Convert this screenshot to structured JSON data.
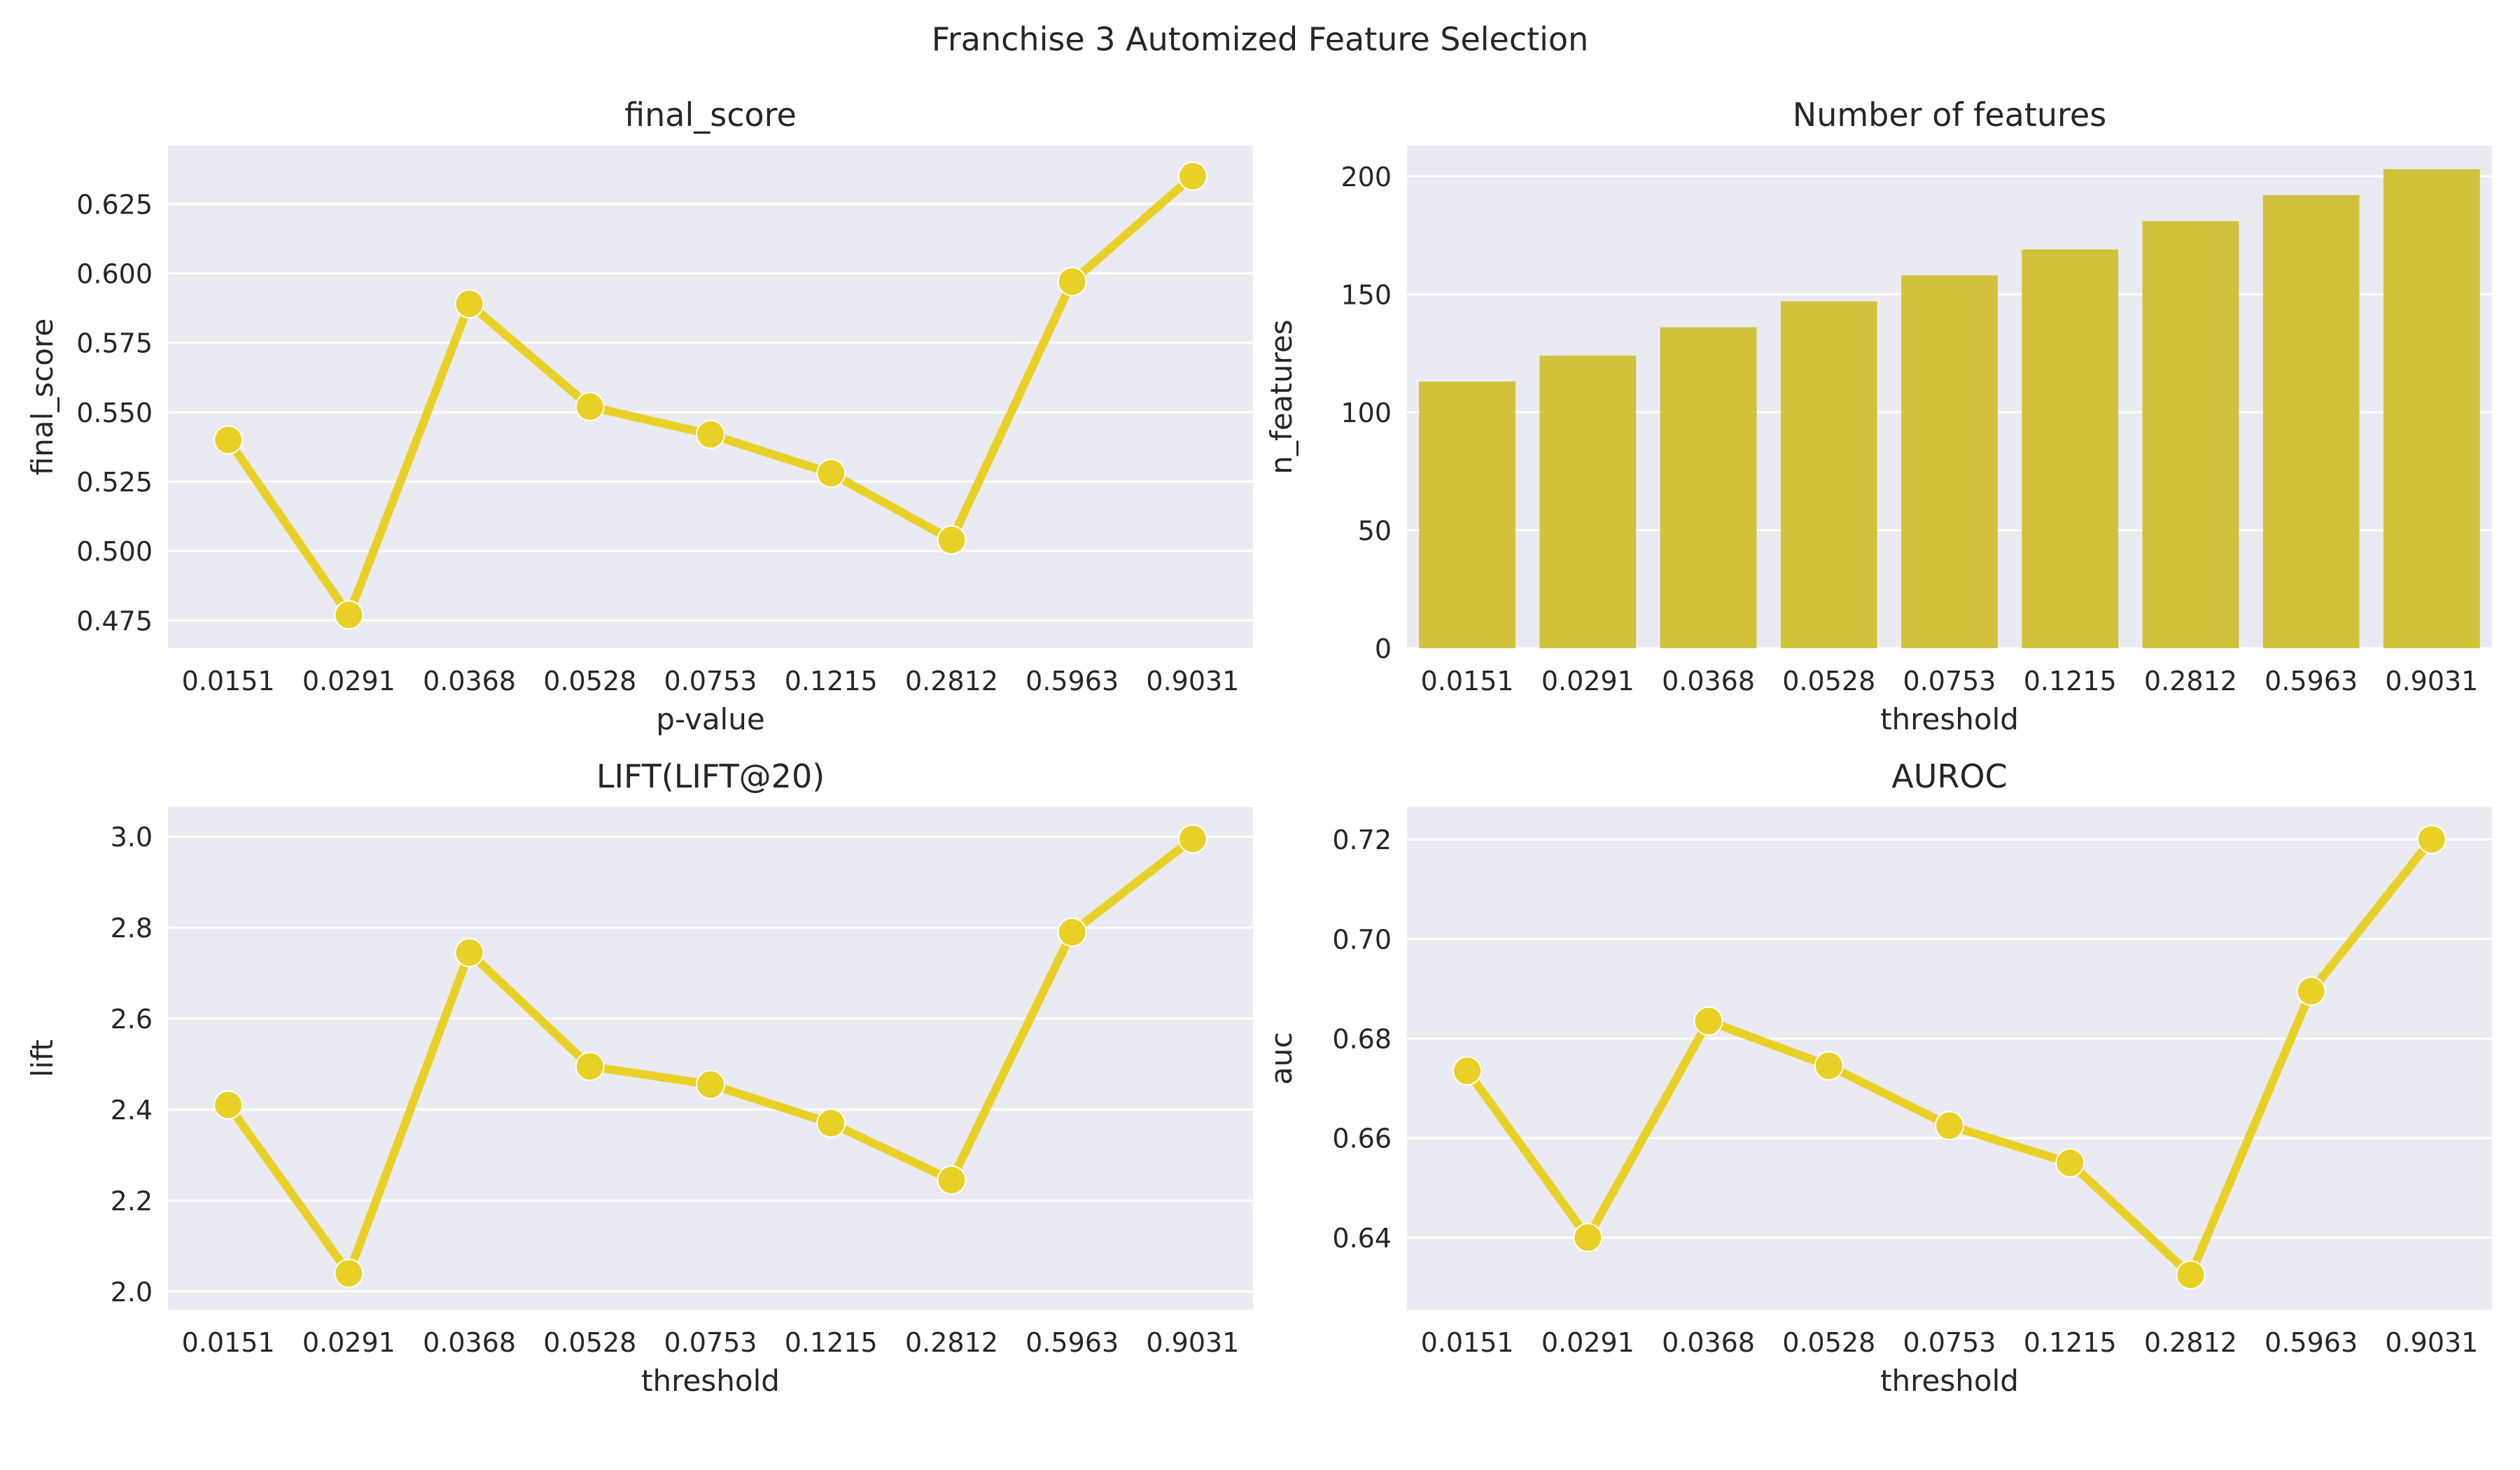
{
  "figure": {
    "title": "Franchise 3 Automized Feature Selection"
  },
  "colors": {
    "line": "#e8d027",
    "bar": "#d2c13a",
    "panel_bg": "#eaeaf2",
    "grid": "#ffffff",
    "text": "#262626"
  },
  "chart_data": [
    {
      "type": "line",
      "title": "final_score",
      "xlabel": "p-value",
      "ylabel": "final_score",
      "categories": [
        "0.0151",
        "0.0291",
        "0.0368",
        "0.0528",
        "0.0753",
        "0.1215",
        "0.2812",
        "0.5963",
        "0.9031"
      ],
      "values": [
        0.54,
        0.477,
        0.589,
        0.552,
        0.542,
        0.528,
        0.504,
        0.597,
        0.635
      ],
      "ylim": [
        0.465,
        0.646
      ],
      "yticks": [
        0.475,
        0.5,
        0.525,
        0.55,
        0.575,
        0.6,
        0.625
      ],
      "ytick_labels": [
        "0.475",
        "0.500",
        "0.525",
        "0.550",
        "0.575",
        "0.600",
        "0.625"
      ],
      "grid": true,
      "markers": true
    },
    {
      "type": "bar",
      "title": "Number of features",
      "xlabel": "threshold",
      "ylabel": "n_features",
      "categories": [
        "0.0151",
        "0.0291",
        "0.0368",
        "0.0528",
        "0.0753",
        "0.1215",
        "0.2812",
        "0.5963",
        "0.9031"
      ],
      "values": [
        113,
        124,
        136,
        147,
        158,
        169,
        181,
        192,
        203
      ],
      "ylim": [
        0,
        213
      ],
      "yticks": [
        0,
        50,
        100,
        150,
        200
      ],
      "ytick_labels": [
        "0",
        "50",
        "100",
        "150",
        "200"
      ],
      "grid": true
    },
    {
      "type": "line",
      "title": "LIFT(LIFT@20)",
      "xlabel": "threshold",
      "ylabel": "lift",
      "categories": [
        "0.0151",
        "0.0291",
        "0.0368",
        "0.0528",
        "0.0753",
        "0.1215",
        "0.2812",
        "0.5963",
        "0.9031"
      ],
      "values": [
        2.41,
        2.04,
        2.745,
        2.495,
        2.455,
        2.37,
        2.245,
        2.79,
        2.995
      ],
      "ylim": [
        1.96,
        3.065
      ],
      "yticks": [
        2.0,
        2.2,
        2.4,
        2.6,
        2.8,
        3.0
      ],
      "ytick_labels": [
        "2.0",
        "2.2",
        "2.4",
        "2.6",
        "2.8",
        "3.0"
      ],
      "grid": true,
      "markers": true
    },
    {
      "type": "line",
      "title": "AUROC",
      "xlabel": "threshold",
      "ylabel": "auc",
      "categories": [
        "0.0151",
        "0.0291",
        "0.0368",
        "0.0528",
        "0.0753",
        "0.1215",
        "0.2812",
        "0.5963",
        "0.9031"
      ],
      "values": [
        0.6735,
        0.64,
        0.6835,
        0.6745,
        0.6625,
        0.655,
        0.6325,
        0.6895,
        0.72
      ],
      "ylim": [
        0.6255,
        0.7265
      ],
      "yticks": [
        0.64,
        0.66,
        0.68,
        0.7,
        0.72
      ],
      "ytick_labels": [
        "0.64",
        "0.66",
        "0.68",
        "0.70",
        "0.72"
      ],
      "grid": true,
      "markers": true
    }
  ]
}
